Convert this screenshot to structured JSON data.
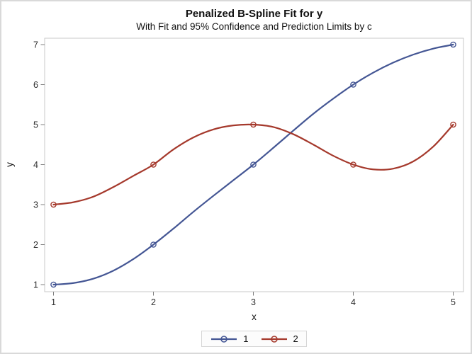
{
  "chart_data": {
    "type": "line",
    "title": "Penalized B-Spline Fit for y",
    "subtitle": "With Fit and 95% Confidence and Prediction Limits by c",
    "xlabel": "x",
    "ylabel": "y",
    "xlim": [
      1,
      5
    ],
    "ylim": [
      1,
      7
    ],
    "x_ticks": [
      1,
      2,
      3,
      4,
      5
    ],
    "y_ticks": [
      1,
      2,
      3,
      4,
      5,
      6,
      7
    ],
    "grid": false,
    "legend_position": "bottom-center",
    "frame_color": "#c9c9c9",
    "tick_color": "#808080",
    "tick_label_color": "#2e2e2e",
    "series": [
      {
        "name": "1",
        "color": "#445694",
        "marker": "open-circle",
        "points": [
          [
            1,
            1
          ],
          [
            2,
            2
          ],
          [
            3,
            4
          ],
          [
            4,
            6
          ],
          [
            5,
            7
          ]
        ],
        "smooth": [
          [
            1,
            1.0
          ],
          [
            1.2,
            1.04
          ],
          [
            1.4,
            1.15
          ],
          [
            1.6,
            1.35
          ],
          [
            1.8,
            1.64
          ],
          [
            2,
            2.0
          ],
          [
            2.2,
            2.4
          ],
          [
            2.4,
            2.82
          ],
          [
            2.6,
            3.22
          ],
          [
            2.8,
            3.61
          ],
          [
            3,
            4.0
          ],
          [
            3.2,
            4.42
          ],
          [
            3.4,
            4.85
          ],
          [
            3.6,
            5.27
          ],
          [
            3.8,
            5.65
          ],
          [
            4,
            6.0
          ],
          [
            4.2,
            6.3
          ],
          [
            4.4,
            6.55
          ],
          [
            4.6,
            6.75
          ],
          [
            4.8,
            6.9
          ],
          [
            5,
            7.0
          ]
        ]
      },
      {
        "name": "2",
        "color": "#A5392C",
        "marker": "open-circle",
        "points": [
          [
            1,
            3
          ],
          [
            2,
            4
          ],
          [
            3,
            5
          ],
          [
            4,
            4
          ],
          [
            5,
            5
          ]
        ],
        "smooth": [
          [
            1,
            3.0
          ],
          [
            1.2,
            3.06
          ],
          [
            1.4,
            3.2
          ],
          [
            1.6,
            3.44
          ],
          [
            1.8,
            3.72
          ],
          [
            2,
            4.0
          ],
          [
            2.2,
            4.38
          ],
          [
            2.4,
            4.68
          ],
          [
            2.6,
            4.88
          ],
          [
            2.8,
            4.98
          ],
          [
            3,
            5.0
          ],
          [
            3.2,
            4.94
          ],
          [
            3.4,
            4.76
          ],
          [
            3.6,
            4.5
          ],
          [
            3.8,
            4.22
          ],
          [
            4,
            4.0
          ],
          [
            4.2,
            3.88
          ],
          [
            4.4,
            3.9
          ],
          [
            4.6,
            4.08
          ],
          [
            4.8,
            4.45
          ],
          [
            5,
            5.0
          ]
        ]
      }
    ]
  }
}
